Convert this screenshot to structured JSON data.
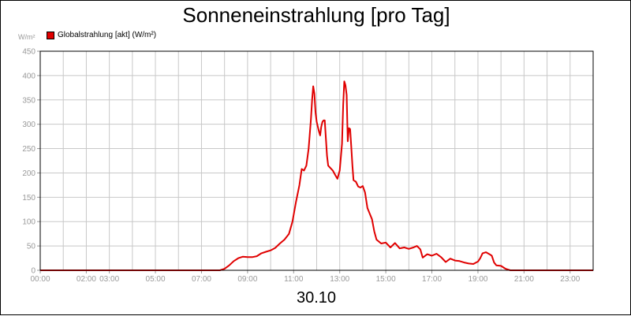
{
  "chart_data": {
    "type": "line",
    "title": "Sonneneinstrahlung [pro Tag]",
    "ylabel": "W/m²",
    "xlabel": "30.10",
    "ylim": [
      0,
      450
    ],
    "yticks": [
      0,
      50,
      100,
      150,
      200,
      250,
      300,
      350,
      400,
      450
    ],
    "xlim": [
      0,
      24
    ],
    "xticks": [
      {
        "hour": 0,
        "label": "00:00"
      },
      {
        "hour": 2,
        "label": "02:00"
      },
      {
        "hour": 3,
        "label": "03:00"
      },
      {
        "hour": 5,
        "label": "05:00"
      },
      {
        "hour": 7,
        "label": "07:00"
      },
      {
        "hour": 9,
        "label": "09:00"
      },
      {
        "hour": 11,
        "label": "11:00"
      },
      {
        "hour": 13,
        "label": "13:00"
      },
      {
        "hour": 15,
        "label": "15:00"
      },
      {
        "hour": 17,
        "label": "17:00"
      },
      {
        "hour": 19,
        "label": "19:00"
      },
      {
        "hour": 21,
        "label": "21:00"
      },
      {
        "hour": 23,
        "label": "23:00"
      }
    ],
    "grid": true,
    "legend_position": "top-left",
    "series": [
      {
        "name": "Globalstrahlung [akt] (W/m²)",
        "color": "#e00000",
        "points": [
          [
            0,
            0
          ],
          [
            7.8,
            0
          ],
          [
            8.0,
            3
          ],
          [
            8.2,
            10
          ],
          [
            8.4,
            19
          ],
          [
            8.6,
            25
          ],
          [
            8.8,
            28
          ],
          [
            9.0,
            27
          ],
          [
            9.2,
            27
          ],
          [
            9.4,
            29
          ],
          [
            9.6,
            35
          ],
          [
            9.8,
            38
          ],
          [
            10.0,
            41
          ],
          [
            10.2,
            46
          ],
          [
            10.4,
            55
          ],
          [
            10.6,
            63
          ],
          [
            10.8,
            75
          ],
          [
            10.95,
            100
          ],
          [
            11.1,
            140
          ],
          [
            11.25,
            175
          ],
          [
            11.35,
            208
          ],
          [
            11.45,
            205
          ],
          [
            11.55,
            215
          ],
          [
            11.65,
            250
          ],
          [
            11.75,
            310
          ],
          [
            11.8,
            350
          ],
          [
            11.85,
            378
          ],
          [
            11.9,
            363
          ],
          [
            11.95,
            325
          ],
          [
            12.0,
            305
          ],
          [
            12.1,
            285
          ],
          [
            12.15,
            277
          ],
          [
            12.2,
            295
          ],
          [
            12.25,
            305
          ],
          [
            12.3,
            308
          ],
          [
            12.35,
            308
          ],
          [
            12.4,
            270
          ],
          [
            12.45,
            235
          ],
          [
            12.5,
            215
          ],
          [
            12.7,
            205
          ],
          [
            12.8,
            196
          ],
          [
            12.9,
            188
          ],
          [
            13.0,
            205
          ],
          [
            13.1,
            260
          ],
          [
            13.15,
            340
          ],
          [
            13.2,
            388
          ],
          [
            13.25,
            380
          ],
          [
            13.3,
            360
          ],
          [
            13.35,
            265
          ],
          [
            13.4,
            292
          ],
          [
            13.45,
            290
          ],
          [
            13.5,
            255
          ],
          [
            13.55,
            215
          ],
          [
            13.6,
            185
          ],
          [
            13.7,
            182
          ],
          [
            13.8,
            172
          ],
          [
            13.9,
            170
          ],
          [
            14.0,
            173
          ],
          [
            14.1,
            160
          ],
          [
            14.2,
            128
          ],
          [
            14.4,
            105
          ],
          [
            14.5,
            80
          ],
          [
            14.6,
            63
          ],
          [
            14.8,
            55
          ],
          [
            15.0,
            57
          ],
          [
            15.2,
            47
          ],
          [
            15.4,
            56
          ],
          [
            15.6,
            45
          ],
          [
            15.8,
            47
          ],
          [
            16.0,
            44
          ],
          [
            16.2,
            47
          ],
          [
            16.35,
            50
          ],
          [
            16.5,
            43
          ],
          [
            16.6,
            26
          ],
          [
            16.8,
            33
          ],
          [
            17.0,
            30
          ],
          [
            17.2,
            34
          ],
          [
            17.4,
            27
          ],
          [
            17.6,
            17
          ],
          [
            17.8,
            24
          ],
          [
            18.0,
            20
          ],
          [
            18.2,
            19
          ],
          [
            18.4,
            16
          ],
          [
            18.6,
            14
          ],
          [
            18.8,
            13
          ],
          [
            19.0,
            18
          ],
          [
            19.1,
            25
          ],
          [
            19.2,
            35
          ],
          [
            19.35,
            37
          ],
          [
            19.5,
            33
          ],
          [
            19.6,
            30
          ],
          [
            19.7,
            16
          ],
          [
            19.8,
            10
          ],
          [
            20.0,
            9
          ],
          [
            20.2,
            3
          ],
          [
            20.4,
            0
          ],
          [
            24,
            0
          ]
        ]
      }
    ]
  }
}
